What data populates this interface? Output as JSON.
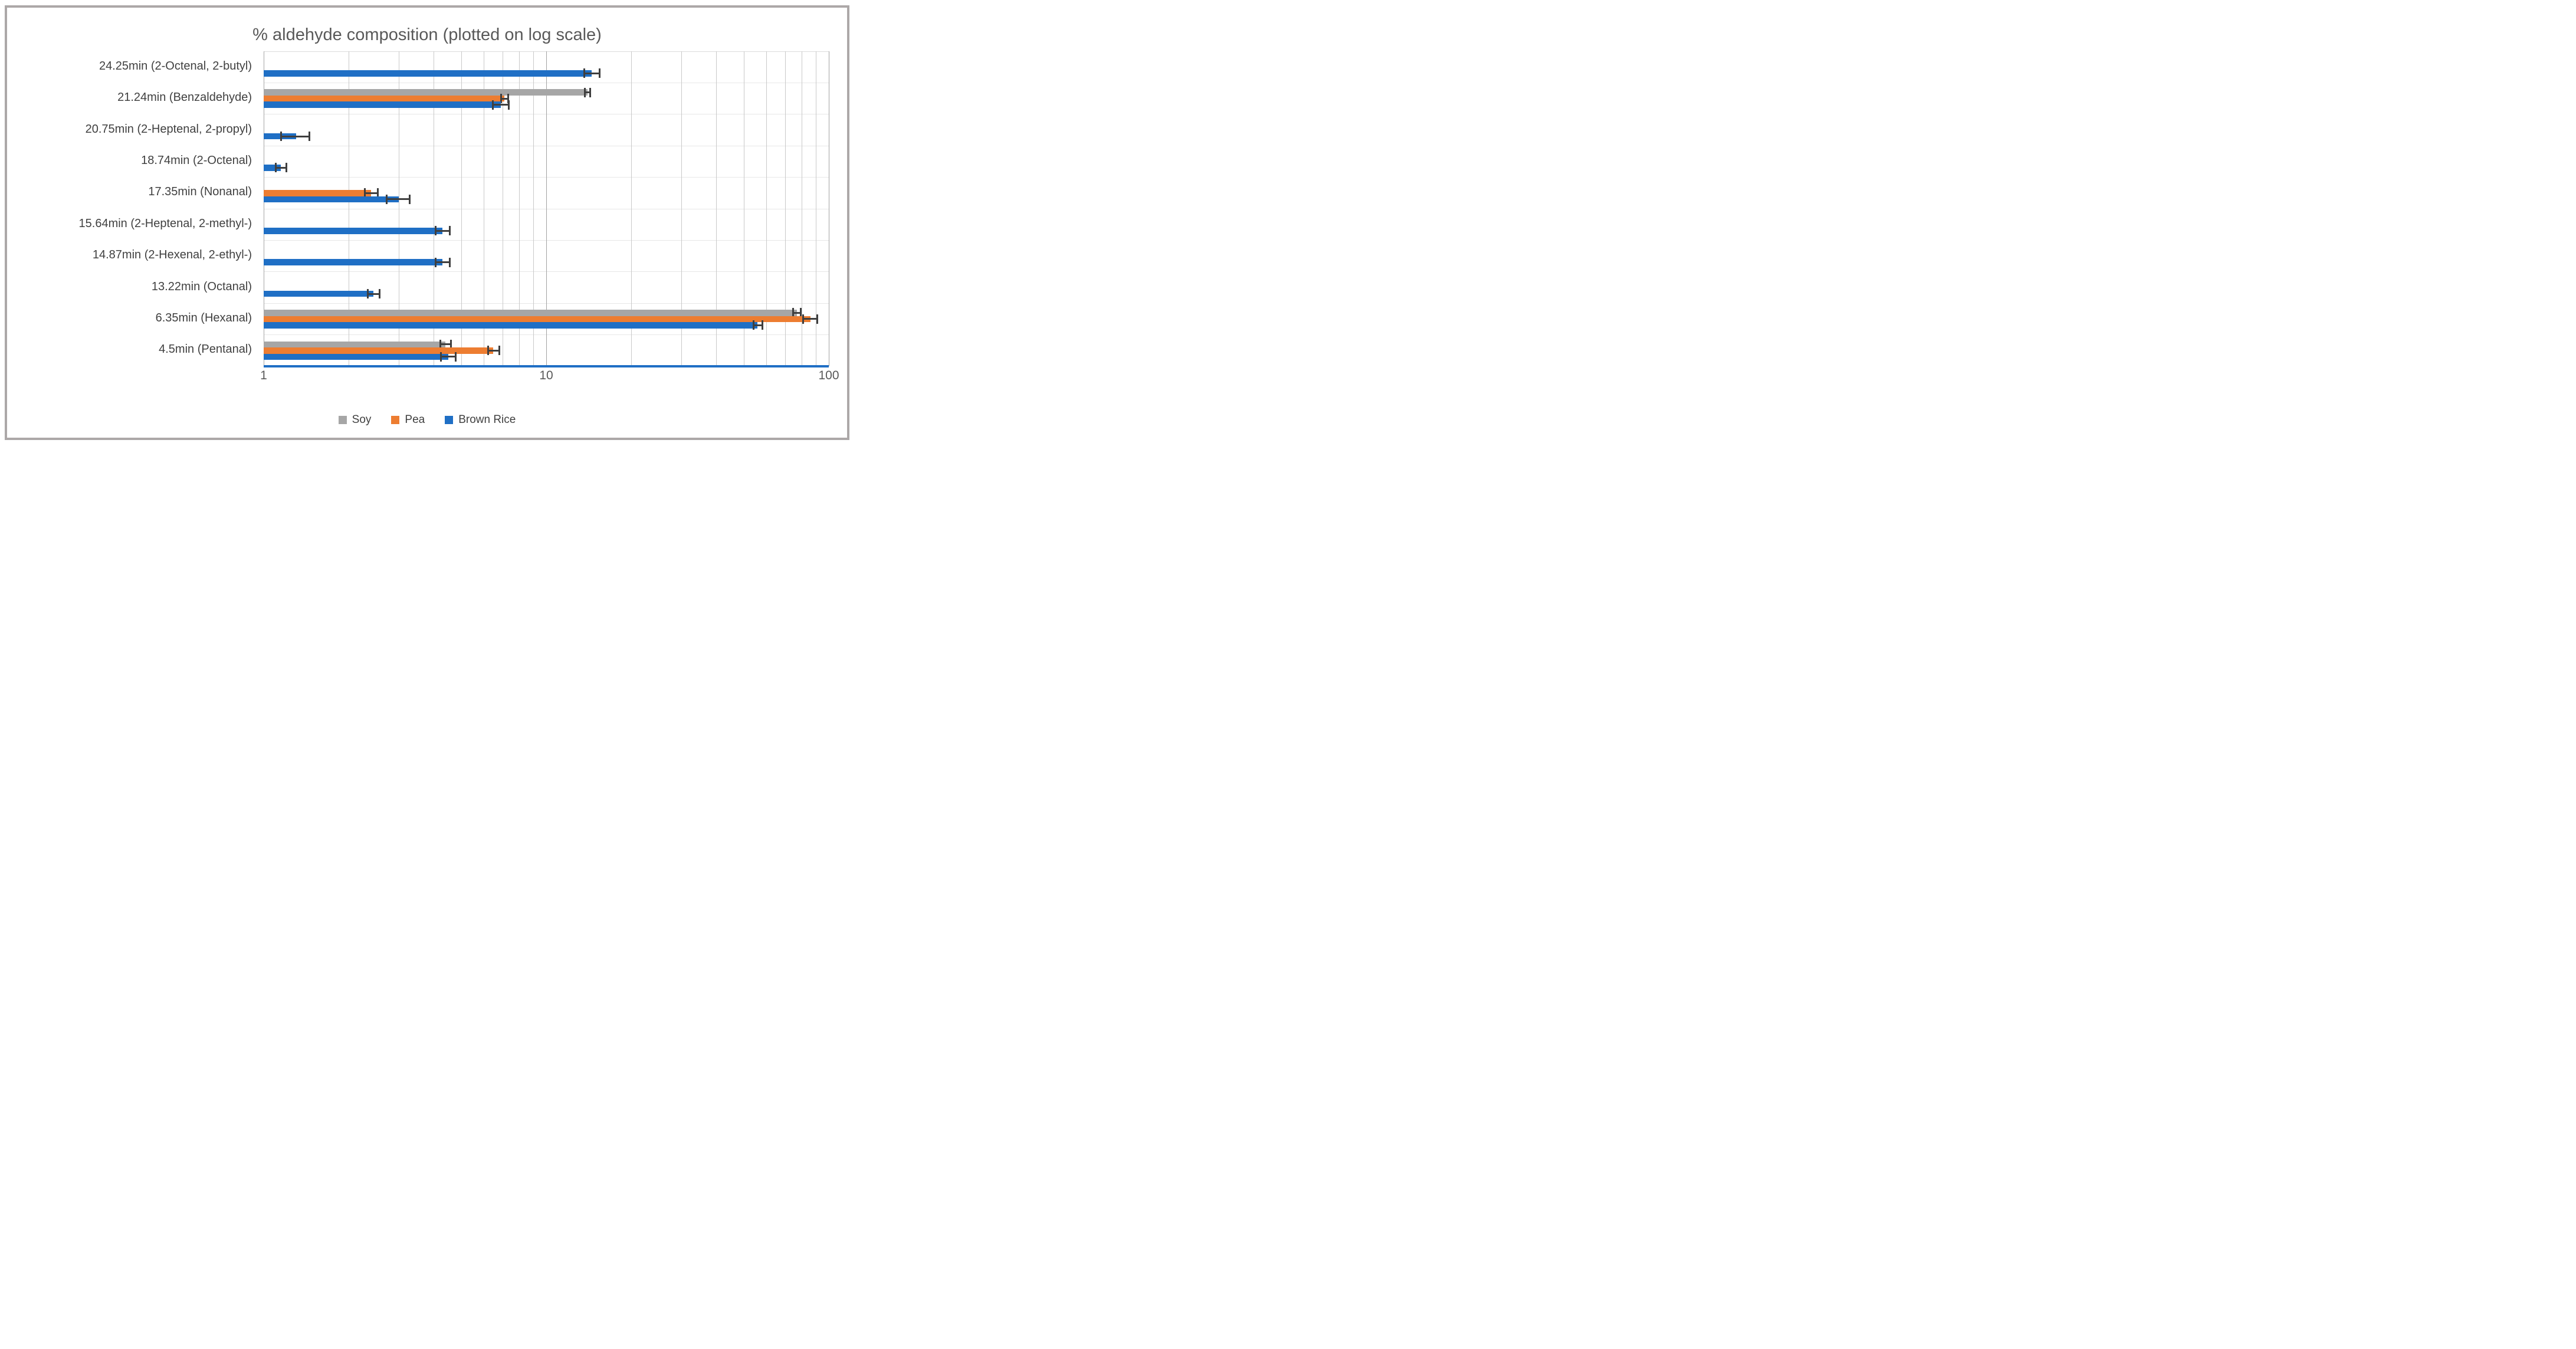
{
  "title": "% aldehyde composition (plotted on log scale)",
  "axis": {
    "x_ticks": [
      "1",
      "10",
      "100"
    ],
    "min": 1,
    "max": 100,
    "scale": "log"
  },
  "legend": {
    "position": "bottom",
    "items": [
      "Soy",
      "Pea",
      "Brown Rice"
    ]
  },
  "colors": {
    "soy": "#A6A6A6",
    "pea": "#ED7D31",
    "brown_rice": "#1F6FC5",
    "error_bar": "#3F3F3F",
    "title_text": "#595959",
    "category_text": "#404040",
    "grid_minor": "#C9C9C9",
    "grid_major": "#A3A3A3",
    "frame_border": "#ACA8A8"
  },
  "chart_data": {
    "type": "bar",
    "orientation": "horizontal",
    "log_scale": true,
    "title": "% aldehyde composition (plotted on log scale)",
    "xlim": [
      1,
      100
    ],
    "x_tick_values": [
      1,
      10,
      100
    ],
    "grid": true,
    "legend_position": "bottom",
    "categories": [
      "24.25min (2-Octenal, 2-butyl)",
      "21.24min (Benzaldehyde)",
      "20.75min (2-Heptenal, 2-propyl)",
      "18.74min (2-Octenal)",
      "17.35min (Nonanal)",
      "15.64min (2-Heptenal, 2-methyl-)",
      "14.87min (2-Hexenal, 2-ethyl-)",
      "13.22min (Octanal)",
      "6.35min (Hexanal)",
      "4.5min (Pentanal)"
    ],
    "series": [
      {
        "name": "Soy",
        "color": "#A6A6A6",
        "values": [
          null,
          14.0,
          null,
          null,
          null,
          null,
          null,
          null,
          77,
          4.4
        ],
        "errors": [
          null,
          0.3,
          null,
          null,
          null,
          null,
          null,
          null,
          2.5,
          0.2
        ]
      },
      {
        "name": "Pea",
        "color": "#ED7D31",
        "values": [
          null,
          7.1,
          null,
          null,
          2.4,
          null,
          null,
          null,
          86,
          6.5
        ],
        "errors": [
          null,
          0.2,
          null,
          null,
          0.13,
          null,
          null,
          null,
          5,
          0.3
        ]
      },
      {
        "name": "Brown Rice",
        "color": "#1F6FC5",
        "values": [
          14.5,
          6.9,
          1.3,
          1.15,
          3.0,
          4.3,
          4.3,
          2.45,
          56,
          4.5
        ],
        "errors": [
          0.9,
          0.45,
          0.15,
          0.05,
          0.28,
          0.25,
          0.25,
          0.12,
          2,
          0.27
        ]
      }
    ]
  }
}
